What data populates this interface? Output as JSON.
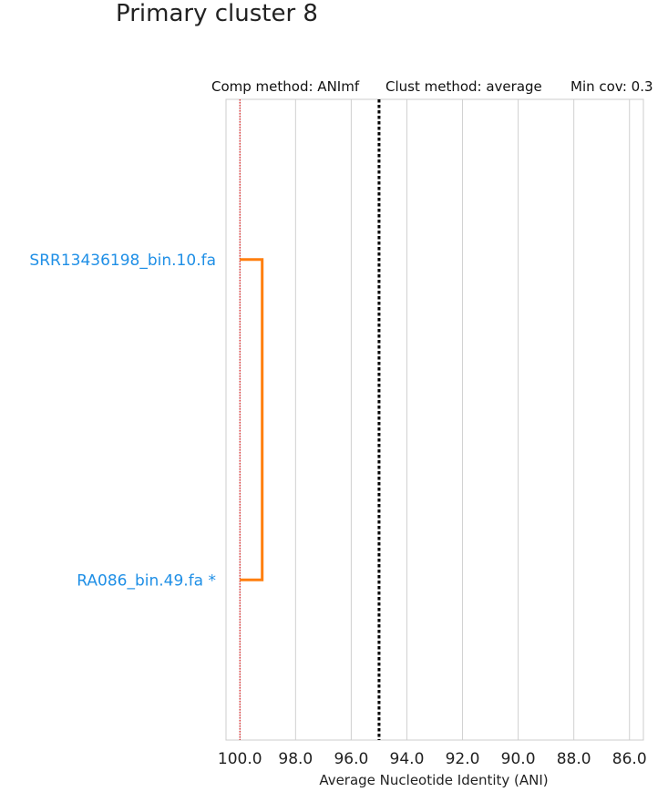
{
  "chart_data": {
    "type": "dendrogram",
    "title": "Primary cluster 8",
    "subtitle": {
      "comp_method": "Comp method: ANImf",
      "clust_method": "Clust method: average",
      "min_cov": "Min cov: 0.3"
    },
    "xlabel": "Average Nucleotide Identity (ANI)",
    "xlim": [
      100.5,
      85.5
    ],
    "xticks": [
      100.0,
      98.0,
      96.0,
      94.0,
      92.0,
      90.0,
      88.0,
      86.0
    ],
    "xtick_labels": [
      "100.0",
      "98.0",
      "96.0",
      "94.0",
      "92.0",
      "90.0",
      "88.0",
      "86.0"
    ],
    "grid": true,
    "threshold": 95.0,
    "reference_line": 100.0,
    "leaves": [
      {
        "label": "SRR13436198_bin.10.fa",
        "color": "#1f8fe6"
      },
      {
        "label": "RA086_bin.49.fa *",
        "color": "#1f8fe6"
      }
    ],
    "merges": [
      {
        "leaves": [
          0,
          1
        ],
        "ani": 99.2,
        "color": "#ff7f0e"
      }
    ],
    "colors": {
      "link": "#ff7f0e",
      "leaf_label": "#1f8fe6",
      "threshold": "#000000",
      "reference": "#e31a1c",
      "grid": "#d0d0d0",
      "frame": "#cccccc"
    }
  }
}
